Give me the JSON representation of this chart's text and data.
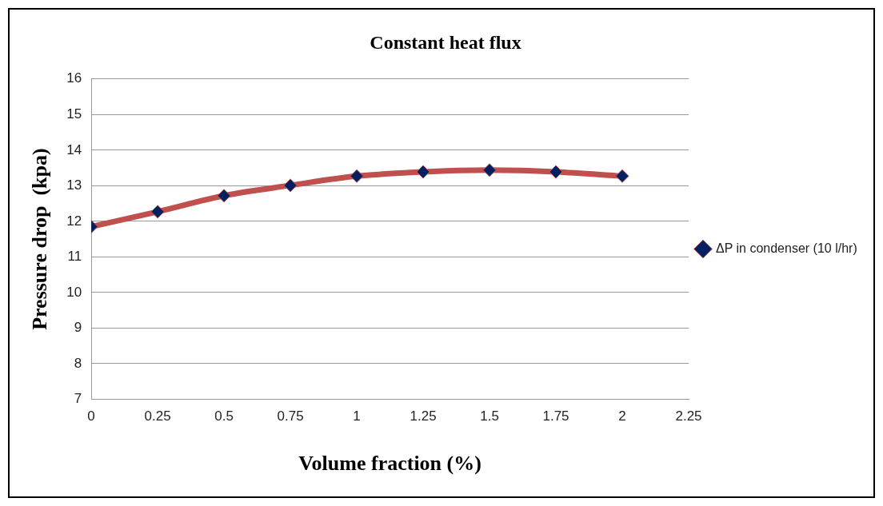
{
  "chart_data": {
    "type": "line",
    "title": "Constant heat flux",
    "xlabel": "Volume fraction (%)",
    "ylabel": "Pressure drop  (kpa)",
    "x": [
      0,
      0.25,
      0.5,
      0.75,
      1,
      1.25,
      1.5,
      1.75,
      2
    ],
    "series": [
      {
        "name": "ΔP in condenser (10 l/hr)",
        "color": "#c0504d",
        "values": [
          11.85,
          12.27,
          12.72,
          13.01,
          13.27,
          13.39,
          13.44,
          13.39,
          13.27
        ]
      }
    ],
    "xlim": [
      0,
      2.25
    ],
    "xticks": [
      0,
      0.25,
      0.5,
      0.75,
      1,
      1.25,
      1.5,
      1.75,
      2,
      2.25
    ],
    "ylim": [
      7,
      16
    ],
    "yticks": [
      7,
      8,
      9,
      10,
      11,
      12,
      13,
      14,
      15,
      16
    ],
    "grid": "y",
    "legend": "right",
    "marker": "diamond",
    "line_style": "solid"
  }
}
